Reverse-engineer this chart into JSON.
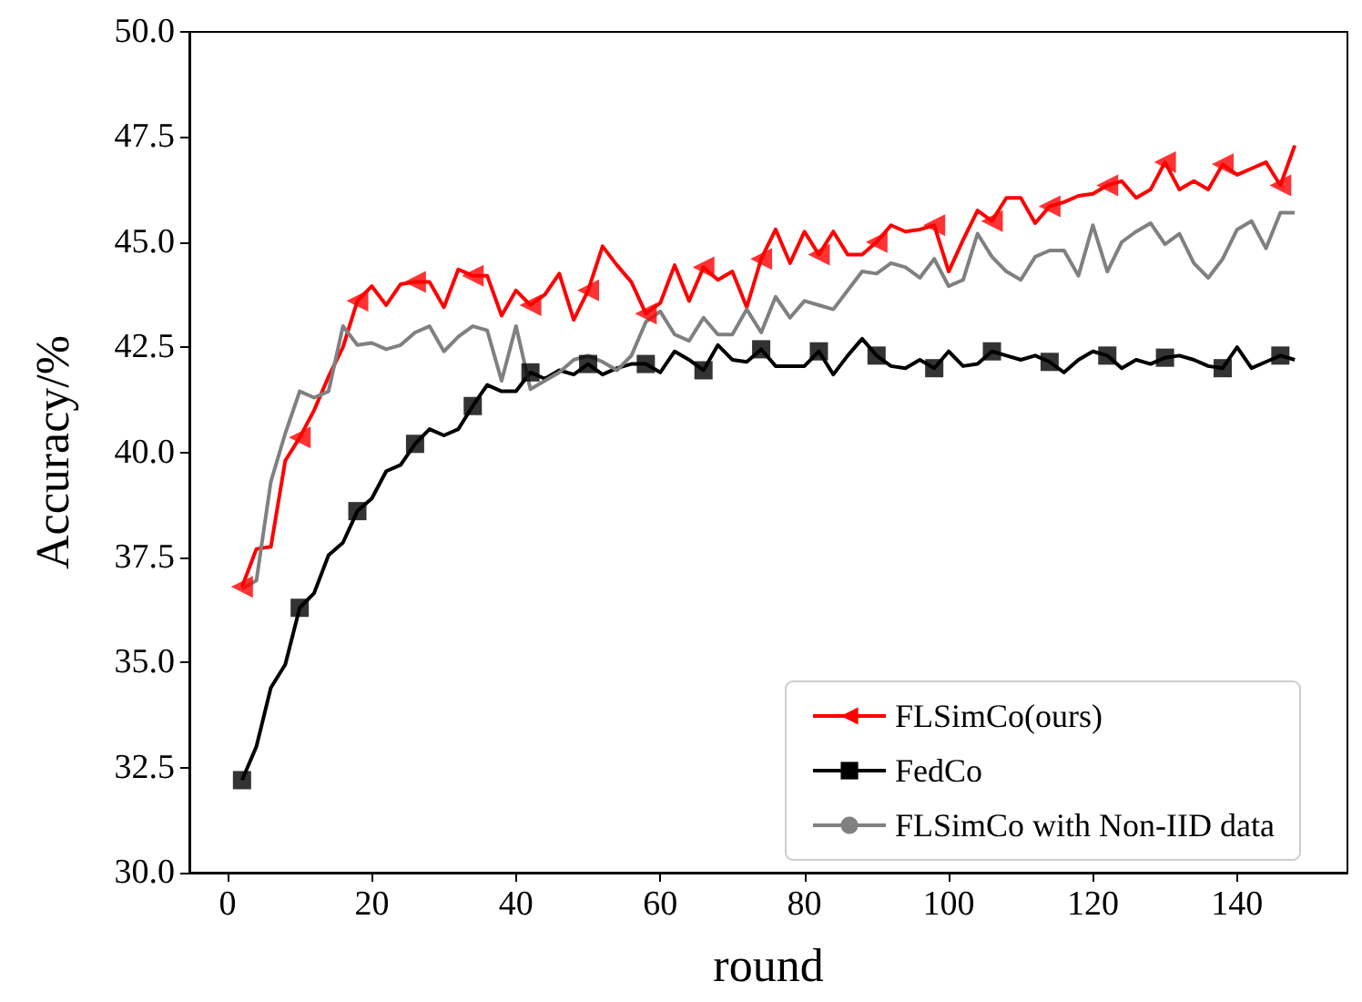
{
  "chart_data": {
    "type": "line",
    "xlabel": "round",
    "ylabel": "Accuracy/%",
    "x": [
      2,
      4,
      6,
      8,
      10,
      12,
      14,
      16,
      18,
      20,
      22,
      24,
      26,
      28,
      30,
      32,
      34,
      36,
      38,
      40,
      42,
      44,
      46,
      48,
      50,
      52,
      54,
      56,
      58,
      60,
      62,
      64,
      66,
      68,
      70,
      72,
      74,
      76,
      78,
      80,
      82,
      84,
      86,
      88,
      90,
      92,
      94,
      96,
      98,
      100,
      102,
      104,
      106,
      108,
      110,
      112,
      114,
      116,
      118,
      120,
      122,
      124,
      126,
      128,
      130,
      132,
      134,
      136,
      138,
      140,
      142,
      144,
      146,
      148
    ],
    "series": [
      {
        "name": "FLSimCo(ours)",
        "color": "#ff0000",
        "values": [
          36.8,
          37.7,
          37.75,
          39.8,
          40.35,
          41.0,
          41.8,
          42.5,
          43.6,
          43.95,
          43.5,
          44.0,
          44.05,
          44.05,
          43.45,
          44.35,
          44.2,
          44.2,
          43.25,
          43.85,
          43.5,
          43.75,
          44.25,
          43.15,
          43.85,
          44.9,
          44.45,
          44.05,
          43.3,
          43.55,
          44.45,
          43.6,
          44.4,
          44.1,
          44.3,
          43.45,
          44.6,
          45.3,
          44.5,
          45.25,
          44.7,
          45.25,
          44.7,
          44.7,
          45.0,
          45.4,
          45.25,
          45.3,
          45.4,
          44.3,
          45.05,
          45.75,
          45.5,
          46.05,
          46.05,
          45.45,
          45.85,
          45.95,
          46.1,
          46.15,
          46.35,
          46.45,
          46.05,
          46.25,
          46.9,
          46.25,
          46.45,
          46.25,
          46.85,
          46.6,
          46.75,
          46.9,
          46.35,
          47.3
        ]
      },
      {
        "type": "scatter",
        "color": "#ff0000",
        "marker": "triangle",
        "x": [
          2,
          10,
          18,
          26,
          34,
          42,
          50,
          58,
          66,
          74,
          82,
          90,
          98,
          106,
          114,
          122,
          130,
          138,
          146
        ],
        "values": [
          36.8,
          40.35,
          43.6,
          44.05,
          44.2,
          43.5,
          43.85,
          43.3,
          44.4,
          44.6,
          44.7,
          45.0,
          45.4,
          45.5,
          45.85,
          46.35,
          46.9,
          46.85,
          46.35
        ]
      },
      {
        "name": "FedCo",
        "color": "#000000",
        "values": [
          32.2,
          33.0,
          34.4,
          34.95,
          36.3,
          36.65,
          37.55,
          37.85,
          38.6,
          38.9,
          39.55,
          39.7,
          40.2,
          40.55,
          40.4,
          40.55,
          41.1,
          41.6,
          41.45,
          41.45,
          41.9,
          41.75,
          41.95,
          41.85,
          42.1,
          41.85,
          42.0,
          42.1,
          42.1,
          41.9,
          42.4,
          42.2,
          41.95,
          42.55,
          42.2,
          42.15,
          42.45,
          42.05,
          42.05,
          42.05,
          42.4,
          41.85,
          42.3,
          42.7,
          42.3,
          42.05,
          42.0,
          42.2,
          42.0,
          42.4,
          42.05,
          42.1,
          42.4,
          42.3,
          42.2,
          42.3,
          42.15,
          41.9,
          42.2,
          42.4,
          42.3,
          42.0,
          42.2,
          42.1,
          42.25,
          42.3,
          42.2,
          42.05,
          42.0,
          42.5,
          42.0,
          42.15,
          42.3,
          42.2
        ]
      },
      {
        "type": "scatter",
        "color": "#000000",
        "marker": "square",
        "x": [
          2,
          10,
          18,
          26,
          34,
          42,
          50,
          58,
          66,
          74,
          82,
          90,
          98,
          106,
          114,
          122,
          130,
          138,
          146
        ],
        "values": [
          32.2,
          36.3,
          38.6,
          40.2,
          41.1,
          41.9,
          42.1,
          42.1,
          41.95,
          42.45,
          42.4,
          42.3,
          42.0,
          42.4,
          42.15,
          42.3,
          42.25,
          42.0,
          42.3
        ]
      },
      {
        "name": "FLSimCo with Non-IID data",
        "color": "#808080",
        "values": [
          36.75,
          36.95,
          39.3,
          40.45,
          41.45,
          41.3,
          41.45,
          43.0,
          42.55,
          42.6,
          42.45,
          42.55,
          42.85,
          43.0,
          42.4,
          42.75,
          43.0,
          42.9,
          41.7,
          43.0,
          41.5,
          41.7,
          41.9,
          42.2,
          42.3,
          42.15,
          41.95,
          42.3,
          43.1,
          43.35,
          42.8,
          42.65,
          43.2,
          42.8,
          42.8,
          43.4,
          42.85,
          43.7,
          43.2,
          43.6,
          43.5,
          43.4,
          43.85,
          44.3,
          44.25,
          44.5,
          44.4,
          44.15,
          44.6,
          43.95,
          44.1,
          45.2,
          44.65,
          44.3,
          44.1,
          44.65,
          44.8,
          44.8,
          44.2,
          45.4,
          44.3,
          45.0,
          45.25,
          45.45,
          44.95,
          45.2,
          44.5,
          44.15,
          44.6,
          45.3,
          45.5,
          44.85,
          45.7,
          45.7
        ]
      }
    ],
    "xlim": [
      -5.3,
      155.3
    ],
    "xticks": [
      0,
      20,
      40,
      60,
      80,
      100,
      120,
      140
    ],
    "ylim": [
      30,
      50
    ],
    "yticks": [
      {
        "value": 30,
        "label": "30.0"
      },
      {
        "value": 32.5,
        "label": "32.5"
      },
      {
        "value": 35,
        "label": "35.0"
      },
      {
        "value": 37.5,
        "label": "37.5"
      },
      {
        "value": 40,
        "label": "40.0"
      },
      {
        "value": 42.5,
        "label": "42.5"
      },
      {
        "value": 45,
        "label": "45.0"
      },
      {
        "value": 47.5,
        "label": "47.5"
      },
      {
        "value": 50,
        "label": "50.0"
      }
    ],
    "grid": false,
    "legend": "bottom right"
  }
}
